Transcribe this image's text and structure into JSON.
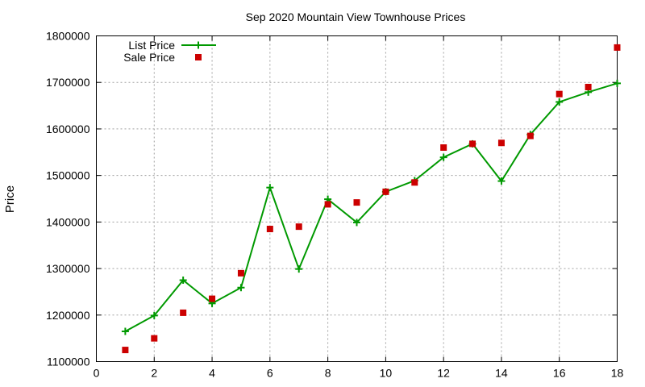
{
  "chart_data": {
    "type": "line",
    "title": "Sep 2020 Mountain View Townhouse Prices",
    "xlabel": "",
    "ylabel": "Price",
    "xlim": [
      0,
      18
    ],
    "ylim": [
      1100000,
      1800000
    ],
    "xticks": [
      0,
      2,
      4,
      6,
      8,
      10,
      12,
      14,
      16,
      18
    ],
    "yticks": [
      1100000,
      1200000,
      1300000,
      1400000,
      1500000,
      1600000,
      1700000,
      1800000
    ],
    "grid": true,
    "legend_position": "top-left",
    "series": [
      {
        "name": "List Price",
        "style": "line-with-plus-markers",
        "color": "#009900",
        "x": [
          1,
          2,
          3,
          4,
          5,
          6,
          7,
          8,
          9,
          10,
          11,
          12,
          13,
          14,
          15,
          16,
          17,
          18
        ],
        "y": [
          1165000,
          1199000,
          1275000,
          1225000,
          1259000,
          1474000,
          1299000,
          1449000,
          1399000,
          1465000,
          1489000,
          1539000,
          1568000,
          1488000,
          1588000,
          1658000,
          1679000,
          1698000
        ]
      },
      {
        "name": "Sale Price",
        "style": "square-markers",
        "color": "#cc0000",
        "x": [
          1,
          2,
          3,
          4,
          5,
          6,
          7,
          8,
          9,
          10,
          11,
          12,
          13,
          14,
          15,
          16,
          17,
          18
        ],
        "y": [
          1125000,
          1150000,
          1205000,
          1235000,
          1290000,
          1385000,
          1390000,
          1438000,
          1442000,
          1465000,
          1485000,
          1560000,
          1568000,
          1570000,
          1585000,
          1675000,
          1690000,
          1775000
        ]
      }
    ]
  }
}
